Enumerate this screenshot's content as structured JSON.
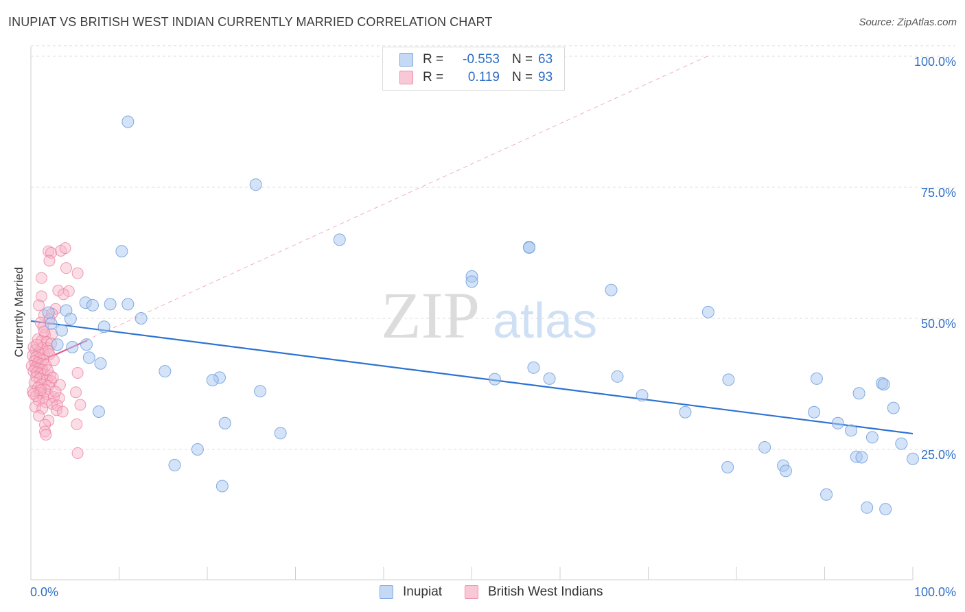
{
  "title": "INUPIAT VS BRITISH WEST INDIAN CURRENTLY MARRIED CORRELATION CHART",
  "source": "Source: ZipAtlas.com",
  "colors": {
    "inupiat_fill": "#a9c8f0",
    "inupiat_stroke": "#6d9fdc",
    "inupiat_line": "#2c72d2",
    "bwi_fill": "#f6b3c6",
    "bwi_stroke": "#ec7b9f",
    "bwi_line": "#e05a8a",
    "axis_label": "#2f6fc6",
    "grid": "#dedede"
  },
  "legend": {
    "rows": [
      {
        "r_label": "R =",
        "r_value": "-0.553",
        "n_label": "N =",
        "n_value": "63"
      },
      {
        "r_label": "R =",
        "r_value": "0.119",
        "n_label": "N =",
        "n_value": "93"
      }
    ]
  },
  "watermark": {
    "zip": "ZIP",
    "atlas": "atlas"
  },
  "chart_data": {
    "type": "scatter",
    "title": "INUPIAT VS BRITISH WEST INDIAN CURRENTLY MARRIED CORRELATION CHART",
    "xlabel": "",
    "ylabel": "Currently Married",
    "xlim": [
      0,
      100
    ],
    "ylim": [
      0,
      102
    ],
    "x_tick_labels": [
      "0.0%",
      "100.0%"
    ],
    "y_ticks": [
      25,
      50,
      75,
      100
    ],
    "y_tick_labels": [
      "25.0%",
      "50.0%",
      "75.0%",
      "100.0%"
    ],
    "legend_position": "bottom-center",
    "series": [
      {
        "name": "Inupiat",
        "R": -0.553,
        "N": 63,
        "trend": {
          "x": [
            0,
            100
          ],
          "y": [
            49.5,
            28.0
          ]
        },
        "points": [
          [
            11,
            87.5
          ],
          [
            25.5,
            75.5
          ],
          [
            10.3,
            62.8
          ],
          [
            35,
            65
          ],
          [
            50,
            58
          ],
          [
            50,
            57
          ],
          [
            56.5,
            63.6
          ],
          [
            56.5,
            63.5
          ],
          [
            65.8,
            55.4
          ],
          [
            76.8,
            51.2
          ],
          [
            6.2,
            53.0
          ],
          [
            9,
            52.7
          ],
          [
            11,
            52.7
          ],
          [
            7,
            52.5
          ],
          [
            4,
            51.5
          ],
          [
            2,
            51.1
          ],
          [
            12.5,
            50.0
          ],
          [
            4.5,
            49.9
          ],
          [
            2.3,
            49.0
          ],
          [
            8.3,
            48.4
          ],
          [
            3.5,
            47.7
          ],
          [
            3,
            45
          ],
          [
            6.3,
            45
          ],
          [
            4.7,
            44.5
          ],
          [
            6.6,
            42.5
          ],
          [
            7.9,
            41.4
          ],
          [
            15.2,
            39.9
          ],
          [
            21.4,
            38.7
          ],
          [
            20.6,
            38.2
          ],
          [
            26,
            36.1
          ],
          [
            28.3,
            28.1
          ],
          [
            22,
            30.0
          ],
          [
            7.7,
            32.2
          ],
          [
            18.9,
            25.0
          ],
          [
            16.3,
            22.0
          ],
          [
            21.7,
            18.0
          ],
          [
            52.6,
            38.4
          ],
          [
            57,
            40.6
          ],
          [
            58.8,
            38.5
          ],
          [
            66.5,
            38.9
          ],
          [
            69.3,
            35.3
          ],
          [
            74.2,
            32.1
          ],
          [
            79.1,
            38.3
          ],
          [
            83.2,
            25.4
          ],
          [
            85.3,
            21.9
          ],
          [
            85.6,
            20.9
          ],
          [
            79,
            21.6
          ],
          [
            89.1,
            38.5
          ],
          [
            88.8,
            32.1
          ],
          [
            90.2,
            16.4
          ],
          [
            91.5,
            30.0
          ],
          [
            93,
            28.6
          ],
          [
            93.6,
            23.6
          ],
          [
            93.9,
            35.7
          ],
          [
            95.4,
            27.3
          ],
          [
            96.5,
            37.6
          ],
          [
            96.7,
            37.4
          ],
          [
            97.8,
            32.9
          ],
          [
            98.7,
            26.1
          ],
          [
            100,
            23.2
          ],
          [
            94.8,
            13.9
          ],
          [
            96.9,
            13.6
          ],
          [
            94.2,
            23.5
          ]
        ]
      },
      {
        "name": "British West Indians",
        "R": 0.119,
        "N": 93,
        "trend": {
          "x": [
            0,
            6.4
          ],
          "y": [
            41.0,
            45.8
          ]
        },
        "trend_dashed": {
          "x": [
            0,
            76.7
          ],
          "y": [
            41.0,
            100
          ]
        },
        "points": [
          [
            2,
            62.8
          ],
          [
            2.3,
            62.5
          ],
          [
            3.4,
            62.9
          ],
          [
            3.9,
            63.4
          ],
          [
            2.1,
            61
          ],
          [
            4,
            59.6
          ],
          [
            5.3,
            58.6
          ],
          [
            1.2,
            57.7
          ],
          [
            3.1,
            55.3
          ],
          [
            4.3,
            55.2
          ],
          [
            3.7,
            54.6
          ],
          [
            1.2,
            54.2
          ],
          [
            2.8,
            51.8
          ],
          [
            1.5,
            50.6
          ],
          [
            2.4,
            50.9
          ],
          [
            1.1,
            49.2
          ],
          [
            1.4,
            48.3
          ],
          [
            1.6,
            46.9
          ],
          [
            2.4,
            47.0
          ],
          [
            0.8,
            46.0
          ],
          [
            1.2,
            45.7
          ],
          [
            1.8,
            45.5
          ],
          [
            0.3,
            44.5
          ],
          [
            1.3,
            44.4
          ],
          [
            1.9,
            44.3
          ],
          [
            0.5,
            43.9
          ],
          [
            0.9,
            43.5
          ],
          [
            1.5,
            43.2
          ],
          [
            2.1,
            43.1
          ],
          [
            0.2,
            42.9
          ],
          [
            0.6,
            42.6
          ],
          [
            1.0,
            42.4
          ],
          [
            1.4,
            42.1
          ],
          [
            0.4,
            41.8
          ],
          [
            0.8,
            41.5
          ],
          [
            1.2,
            41.3
          ],
          [
            1.7,
            41.1
          ],
          [
            0.1,
            40.9
          ],
          [
            0.5,
            40.6
          ],
          [
            0.9,
            40.4
          ],
          [
            1.3,
            40.2
          ],
          [
            0.3,
            39.9
          ],
          [
            0.7,
            39.7
          ],
          [
            1.1,
            39.5
          ],
          [
            1.5,
            39.3
          ],
          [
            2.2,
            39.1
          ],
          [
            0.6,
            38.8
          ],
          [
            1.0,
            38.5
          ],
          [
            1.8,
            38.3
          ],
          [
            2.3,
            38.0
          ],
          [
            0.4,
            37.7
          ],
          [
            1.2,
            37.4
          ],
          [
            2.0,
            37.1
          ],
          [
            0.8,
            36.8
          ],
          [
            1.6,
            36.4
          ],
          [
            0.2,
            36.1
          ],
          [
            1.0,
            35.8
          ],
          [
            1.9,
            35.5
          ],
          [
            0.6,
            35.2
          ],
          [
            1.4,
            34.9
          ],
          [
            2.6,
            35.0
          ],
          [
            3.2,
            34.8
          ],
          [
            0.9,
            34.3
          ],
          [
            1.7,
            34.0
          ],
          [
            2.4,
            33.7
          ],
          [
            3.0,
            33.4
          ],
          [
            0.5,
            33.1
          ],
          [
            1.3,
            32.8
          ],
          [
            2.9,
            32.5
          ],
          [
            3.6,
            32.2
          ],
          [
            0.9,
            31.4
          ],
          [
            2.0,
            30.5
          ],
          [
            1.6,
            29.7
          ],
          [
            1.6,
            28.4
          ],
          [
            1.7,
            27.8
          ],
          [
            5.2,
            29.8
          ],
          [
            5.3,
            39.6
          ],
          [
            5.1,
            35.9
          ],
          [
            5.6,
            33.5
          ],
          [
            5.3,
            24.3
          ],
          [
            2.3,
            45.2
          ],
          [
            2.0,
            43.8
          ],
          [
            2.6,
            42.0
          ],
          [
            1.9,
            40.1
          ],
          [
            2.5,
            38.7
          ],
          [
            3.3,
            37.3
          ],
          [
            1.1,
            36.3
          ],
          [
            2.8,
            36.0
          ],
          [
            0.3,
            35.6
          ],
          [
            0.7,
            45.0
          ],
          [
            1.5,
            47.5
          ],
          [
            2.1,
            49.8
          ],
          [
            0.9,
            52.5
          ]
        ]
      }
    ]
  }
}
